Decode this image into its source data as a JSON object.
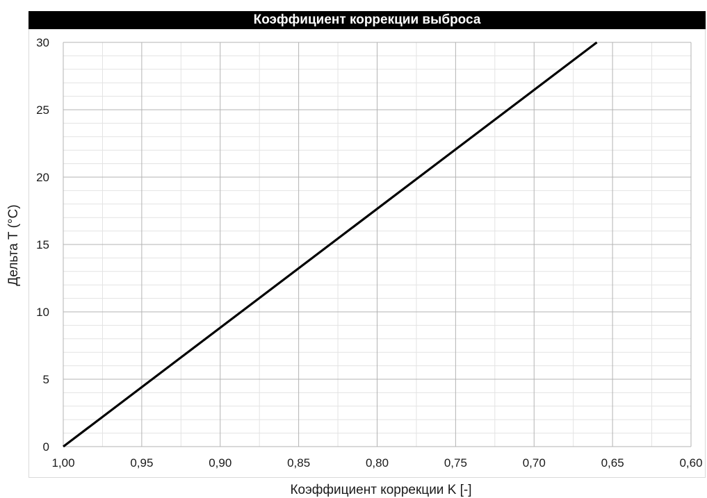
{
  "chart_data": {
    "type": "line",
    "title": "Коэффициент коррекции выброса",
    "xlabel": "Коэффициент коррекции K [-]",
    "ylabel": "Дельта T (°C)",
    "xlim": [
      1.0,
      0.6
    ],
    "ylim": [
      0,
      30
    ],
    "x_reversed": true,
    "x_ticks": [
      "1,00",
      "0,95",
      "0,90",
      "0,85",
      "0,80",
      "0,75",
      "0,70",
      "0,65",
      "0,60"
    ],
    "y_ticks": [
      "0",
      "5",
      "10",
      "15",
      "20",
      "25",
      "30"
    ],
    "grid": true,
    "series": [
      {
        "color": "#000000",
        "x": [
          1.0,
          0.66
        ],
        "y": [
          0,
          30
        ]
      }
    ]
  }
}
